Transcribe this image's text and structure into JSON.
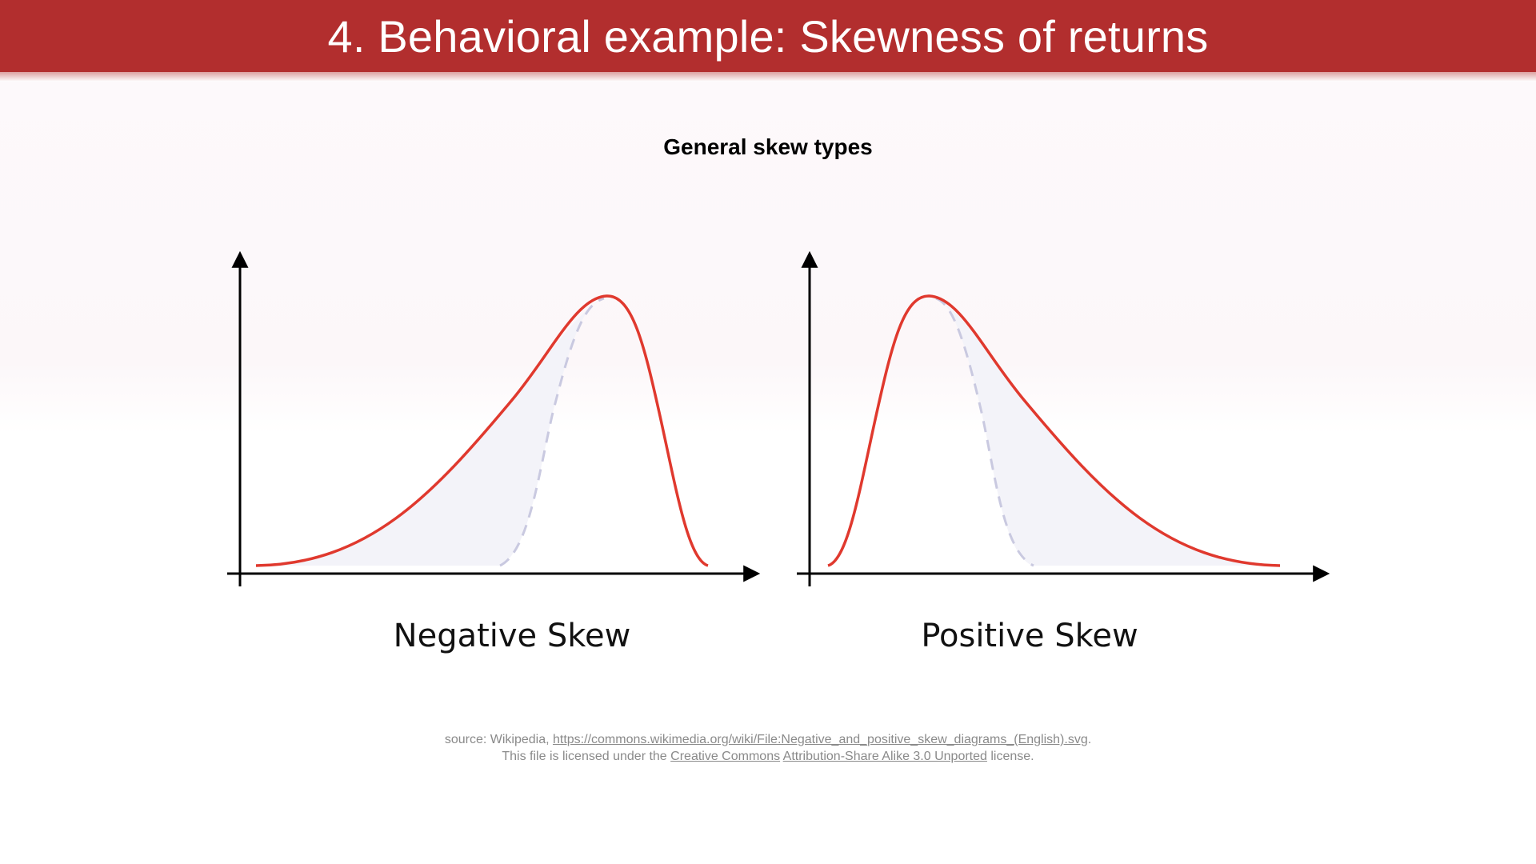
{
  "slide": {
    "title": "4. Behavioral example: Skewness of returns",
    "subtitle": "General skew types"
  },
  "diagram": {
    "panels": [
      {
        "label": "Negative Skew",
        "skew": "negative"
      },
      {
        "label": "Positive Skew",
        "skew": "positive"
      }
    ],
    "colors": {
      "curve": "#e0392e",
      "normal_dashed": "#c9c9e0",
      "fill": "#f3f3f9",
      "axes": "#000000"
    }
  },
  "source": {
    "prefix": "source: Wikipedia, ",
    "url": "https://commons.wikimedia.org/wiki/File:Negative_and_positive_skew_diagrams_(English).svg",
    "after_url": ".",
    "license_prefix": "This file is licensed under the ",
    "license_link1": "Creative Commons",
    "license_space": " ",
    "license_link2": "Attribution-Share Alike 3.0 Unported",
    "license_suffix": " license."
  }
}
